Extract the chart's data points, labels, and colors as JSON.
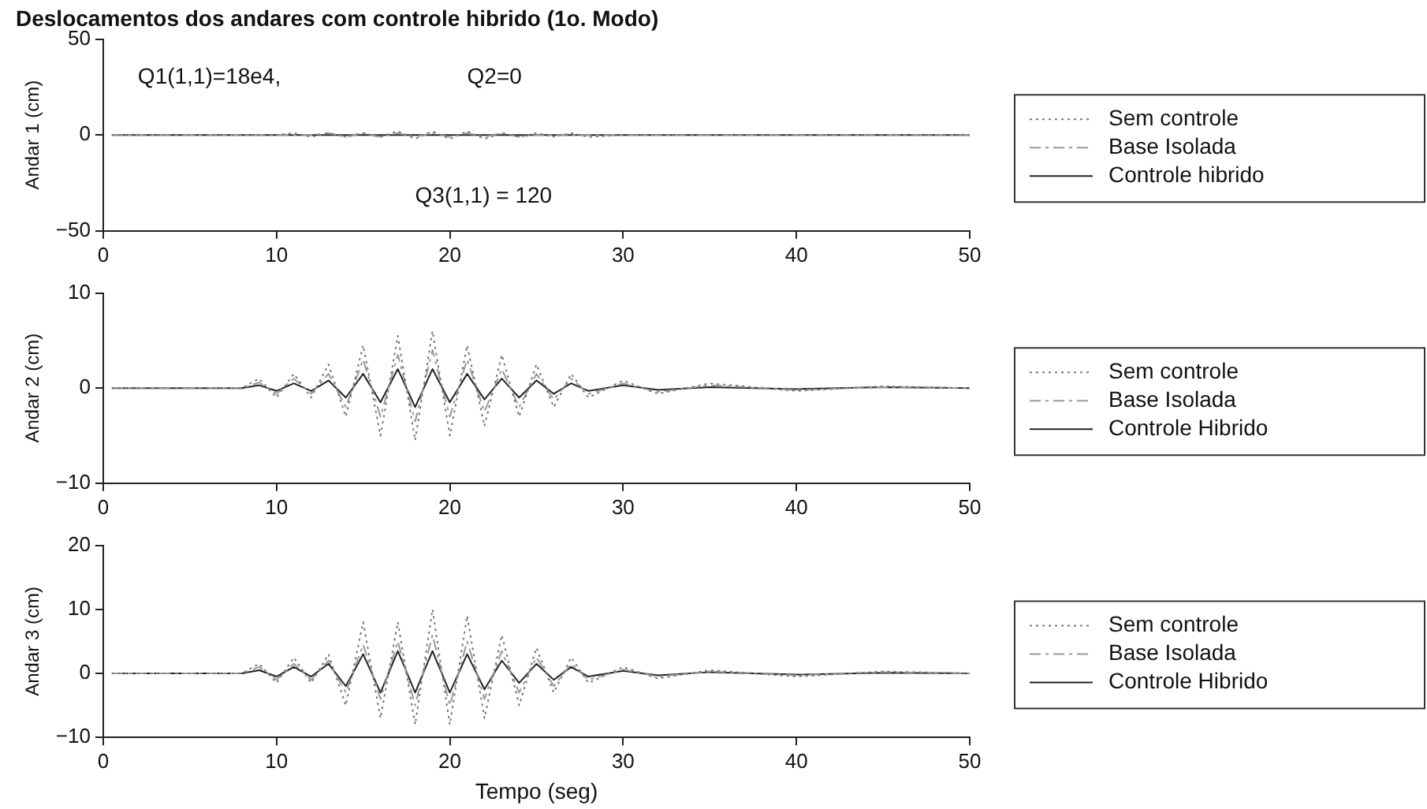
{
  "chart_data": [
    {
      "type": "line",
      "title": "Deslocamentos dos andares com controle hibrido (1o. Modo)",
      "ylabel": "Andar 1 (cm)",
      "xlim": [
        0,
        50
      ],
      "xticks": [
        0,
        10,
        20,
        30,
        40,
        50
      ],
      "ylim": [
        -50,
        50
      ],
      "yticks": [
        -50,
        0,
        50
      ],
      "legend": "right",
      "marker": "none",
      "grid": false,
      "annotations": [
        "Q1(1,1)=18e4,",
        "Q2=0",
        "Q3(1,1) = 120"
      ],
      "x": [
        0.5,
        8,
        9,
        10,
        11,
        12,
        13,
        14,
        15,
        16,
        17,
        18,
        19,
        20,
        21,
        22,
        23,
        24,
        25,
        26,
        27,
        28,
        30,
        32,
        35,
        40,
        45,
        50
      ],
      "series": [
        {
          "name": "Sem controle",
          "color": "#777777",
          "line_style": "dotted",
          "values": [
            0,
            0,
            0,
            0,
            1,
            -1,
            1,
            -1,
            1,
            -1,
            2,
            -2,
            2,
            -2,
            2,
            -2,
            1,
            -1,
            1,
            -1,
            1,
            -1,
            0,
            0,
            0,
            0,
            0,
            0
          ]
        },
        {
          "name": "Base Isolada",
          "color": "#999999",
          "line_style": "dashed",
          "values": [
            0,
            0,
            0,
            0,
            0,
            0,
            1,
            -1,
            1,
            -1,
            1,
            -1,
            1,
            -1,
            1,
            -1,
            1,
            -1,
            0,
            0,
            0,
            0,
            0,
            0,
            0,
            0,
            0,
            0
          ]
        },
        {
          "name": "Controle hibrido",
          "color": "#222222",
          "line_style": "solid",
          "values": [
            0,
            0,
            0,
            0,
            0,
            0,
            0,
            0,
            0,
            0,
            0,
            0,
            0,
            0,
            0,
            0,
            0,
            0,
            0,
            0,
            0,
            0,
            0,
            0,
            0,
            0,
            0,
            0
          ]
        }
      ]
    },
    {
      "type": "line",
      "ylabel": "Andar 2 (cm)",
      "xlim": [
        0,
        50
      ],
      "xticks": [
        0,
        10,
        20,
        30,
        40,
        50
      ],
      "ylim": [
        -10,
        10
      ],
      "yticks": [
        -10,
        0,
        10
      ],
      "legend": "right",
      "marker": "none",
      "grid": false,
      "x": [
        0.5,
        8,
        9,
        10,
        11,
        12,
        13,
        14,
        15,
        16,
        17,
        18,
        19,
        20,
        21,
        22,
        23,
        24,
        25,
        26,
        27,
        28,
        30,
        32,
        35,
        40,
        45,
        50
      ],
      "series": [
        {
          "name": "Sem controle",
          "color": "#777777",
          "line_style": "dotted",
          "values": [
            0,
            0,
            1,
            -1,
            1.5,
            -1,
            2.5,
            -3,
            4.5,
            -5,
            5.5,
            -5.5,
            6,
            -5,
            4.5,
            -4,
            3.5,
            -3,
            2.5,
            -2,
            1.5,
            -1,
            0.8,
            -0.6,
            0.5,
            -0.3,
            0.2,
            0
          ]
        },
        {
          "name": "Base Isolada",
          "color": "#999999",
          "line_style": "dashed",
          "values": [
            0,
            0,
            0.6,
            -0.6,
            1,
            -0.6,
            1.5,
            -2,
            3,
            -3,
            3.5,
            -3.5,
            4,
            -3,
            3,
            -2.5,
            2,
            -2,
            1.5,
            -1.2,
            1,
            -0.6,
            0.5,
            -0.4,
            0.3,
            -0.2,
            0.1,
            0
          ]
        },
        {
          "name": "Controle Hibrido",
          "color": "#222222",
          "line_style": "solid",
          "values": [
            0,
            0,
            0.3,
            -0.3,
            0.5,
            -0.3,
            0.8,
            -1,
            1.5,
            -1.5,
            2,
            -2,
            2,
            -1.5,
            1.5,
            -1.2,
            1,
            -1,
            0.8,
            -0.6,
            0.5,
            -0.3,
            0.3,
            -0.2,
            0.1,
            -0.1,
            0.1,
            0
          ]
        }
      ]
    },
    {
      "type": "line",
      "xlabel": "Tempo (seg)",
      "ylabel": "Andar 3 (cm)",
      "xlim": [
        0,
        50
      ],
      "xticks": [
        0,
        10,
        20,
        30,
        40,
        50
      ],
      "ylim": [
        -10,
        20
      ],
      "yticks": [
        -10,
        0,
        10,
        20
      ],
      "legend": "right",
      "marker": "none",
      "grid": false,
      "x": [
        0.5,
        8,
        9,
        10,
        11,
        12,
        13,
        14,
        15,
        16,
        17,
        18,
        19,
        20,
        21,
        22,
        23,
        24,
        25,
        26,
        27,
        28,
        30,
        32,
        35,
        40,
        45,
        50
      ],
      "series": [
        {
          "name": "Sem controle",
          "color": "#777777",
          "line_style": "dotted",
          "values": [
            0,
            0,
            1.5,
            -1.5,
            2.5,
            -1.5,
            3,
            -5,
            8,
            -7,
            8,
            -8,
            10,
            -8,
            9,
            -7,
            6,
            -5,
            4,
            -3,
            2.5,
            -1.5,
            1,
            -0.8,
            0.5,
            -0.5,
            0.3,
            0
          ]
        },
        {
          "name": "Base Isolada",
          "color": "#999999",
          "line_style": "dashed",
          "values": [
            0,
            0,
            1,
            -1,
            1.5,
            -1,
            2,
            -3,
            4.5,
            -4,
            5,
            -5,
            6,
            -5,
            5,
            -4,
            3.5,
            -3,
            2.5,
            -2,
            1.5,
            -1,
            0.6,
            -0.5,
            0.3,
            -0.3,
            0.2,
            0
          ]
        },
        {
          "name": "Controle Hibrido",
          "color": "#222222",
          "line_style": "solid",
          "values": [
            0,
            0,
            0.5,
            -0.5,
            1,
            -0.5,
            1.5,
            -2,
            3,
            -3,
            3.5,
            -3,
            3.5,
            -3,
            3,
            -2.5,
            2,
            -1.5,
            1.5,
            -1,
            1,
            -0.5,
            0.4,
            -0.3,
            0.2,
            -0.2,
            0.1,
            0
          ]
        }
      ]
    }
  ]
}
